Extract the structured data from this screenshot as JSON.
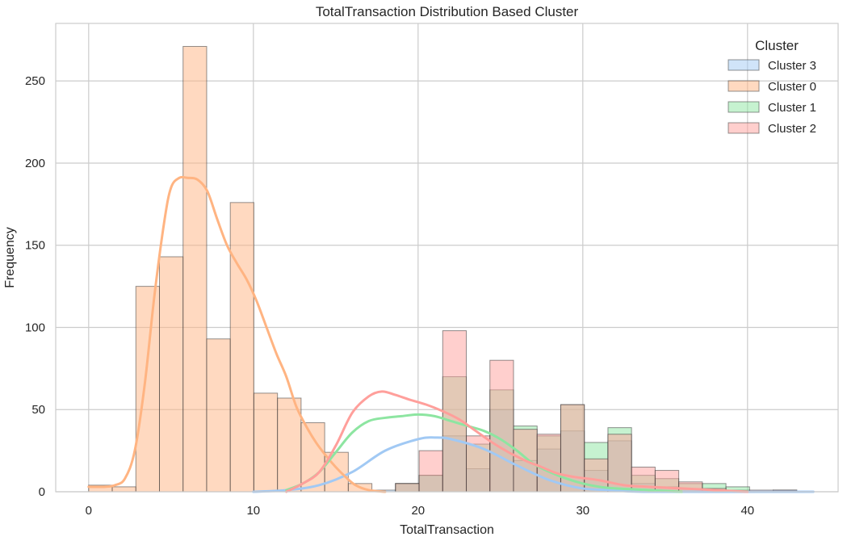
{
  "chart_data": {
    "type": "histogram",
    "title": "TotalTransaction Distribution Based Cluster",
    "xlabel": "TotalTransaction",
    "ylabel": "Frequency",
    "xlim": [
      -2,
      45.5
    ],
    "ylim": [
      0,
      285
    ],
    "xticks": [
      0,
      10,
      20,
      30,
      40
    ],
    "yticks": [
      0,
      50,
      100,
      150,
      200,
      250
    ],
    "grid": true,
    "legend": {
      "title": "Cluster",
      "position": "top-right"
    },
    "bins": {
      "start": 0,
      "width": 1.433,
      "count": 30
    },
    "series": [
      {
        "name": "Cluster 3",
        "color": "#a1c9f4",
        "kde_color": "#a1c9f4",
        "counts": [
          0,
          0,
          0,
          0,
          0,
          0,
          0,
          0,
          0,
          0,
          0,
          0,
          1,
          5,
          10,
          34,
          14,
          50,
          19,
          26,
          37,
          13,
          31,
          5,
          3,
          2,
          1,
          1,
          0,
          1
        ],
        "kde": [
          [
            10,
            0
          ],
          [
            12,
            1
          ],
          [
            14,
            4
          ],
          [
            16,
            12
          ],
          [
            18,
            25
          ],
          [
            20,
            32
          ],
          [
            21,
            33
          ],
          [
            22,
            32
          ],
          [
            24,
            26
          ],
          [
            26,
            16
          ],
          [
            28,
            7
          ],
          [
            30,
            2
          ],
          [
            32,
            1
          ],
          [
            34,
            0
          ],
          [
            44,
            0
          ]
        ]
      },
      {
        "name": "Cluster 0",
        "color": "#ffb482",
        "kde_color": "#ffb482",
        "counts": [
          4,
          3,
          125,
          143,
          271,
          93,
          176,
          60,
          57,
          42,
          24,
          5,
          0,
          0,
          0,
          0,
          0,
          0,
          0,
          0,
          0,
          0,
          0,
          0,
          0,
          0,
          0,
          0,
          0,
          0
        ],
        "kde": [
          [
            0,
            3
          ],
          [
            1,
            3
          ],
          [
            1.6,
            4
          ],
          [
            2.2,
            8
          ],
          [
            2.8,
            25
          ],
          [
            3.4,
            65
          ],
          [
            4,
            120
          ],
          [
            4.6,
            165
          ],
          [
            5,
            185
          ],
          [
            5.5,
            191
          ],
          [
            6,
            191
          ],
          [
            6.6,
            190
          ],
          [
            7.2,
            183
          ],
          [
            7.8,
            166
          ],
          [
            8.4,
            150
          ],
          [
            9,
            139
          ],
          [
            9.6,
            129
          ],
          [
            10.2,
            116
          ],
          [
            10.8,
            100
          ],
          [
            11.4,
            84
          ],
          [
            12,
            70
          ],
          [
            12.6,
            52
          ],
          [
            13.2,
            40
          ],
          [
            13.8,
            30
          ],
          [
            14.4,
            22
          ],
          [
            15,
            15
          ],
          [
            15.6,
            9
          ],
          [
            16.2,
            4
          ],
          [
            17,
            1
          ],
          [
            18,
            0
          ]
        ]
      },
      {
        "name": "Cluster 1",
        "color": "#8de5a1",
        "kde_color": "#8de5a1",
        "counts": [
          0,
          0,
          0,
          0,
          0,
          0,
          0,
          0,
          0,
          0,
          0,
          0,
          0,
          5,
          10,
          70,
          29,
          62,
          40,
          34,
          53,
          30,
          39,
          10,
          8,
          5,
          5,
          3,
          0,
          0
        ],
        "kde": [
          [
            12,
            1
          ],
          [
            13,
            5
          ],
          [
            14,
            12
          ],
          [
            15,
            24
          ],
          [
            16,
            36
          ],
          [
            17,
            43
          ],
          [
            18,
            45
          ],
          [
            19,
            46
          ],
          [
            20,
            47
          ],
          [
            21,
            46
          ],
          [
            22,
            43
          ],
          [
            23,
            40
          ],
          [
            24,
            37
          ],
          [
            25,
            32
          ],
          [
            26,
            25
          ],
          [
            27,
            17
          ],
          [
            28,
            12
          ],
          [
            29,
            8
          ],
          [
            30,
            5
          ],
          [
            31,
            3
          ],
          [
            32,
            2
          ],
          [
            34,
            1
          ],
          [
            36,
            0
          ]
        ]
      },
      {
        "name": "Cluster 2",
        "color": "#ff9f9b",
        "kde_color": "#ff9f9b",
        "counts": [
          0,
          0,
          0,
          0,
          0,
          0,
          0,
          0,
          0,
          0,
          0,
          0,
          0,
          5,
          25,
          98,
          34,
          80,
          38,
          35,
          53,
          20,
          35,
          15,
          13,
          6,
          2,
          0,
          1,
          1
        ],
        "kde": [
          [
            12,
            0
          ],
          [
            13,
            5
          ],
          [
            14,
            12
          ],
          [
            15,
            28
          ],
          [
            16,
            48
          ],
          [
            17,
            58
          ],
          [
            17.8,
            61
          ],
          [
            18.6,
            59
          ],
          [
            19.5,
            56
          ],
          [
            20.5,
            53
          ],
          [
            21.5,
            49
          ],
          [
            22.5,
            44
          ],
          [
            23.5,
            37
          ],
          [
            24.5,
            30
          ],
          [
            25.5,
            24
          ],
          [
            26.5,
            19
          ],
          [
            27.5,
            15
          ],
          [
            28.5,
            11
          ],
          [
            29.5,
            9
          ],
          [
            31,
            7
          ],
          [
            32.5,
            4
          ],
          [
            34,
            3
          ],
          [
            36,
            2
          ],
          [
            38,
            1
          ],
          [
            40,
            0
          ]
        ]
      }
    ]
  }
}
